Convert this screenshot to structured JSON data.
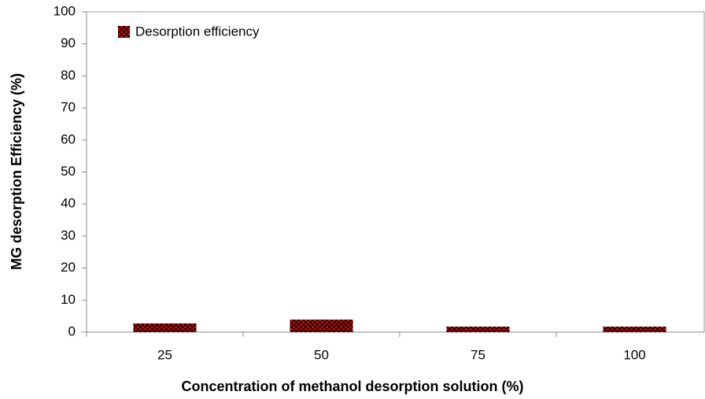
{
  "chart_data": {
    "type": "bar",
    "x_label": "Concentration of methanol desorption solution (%)",
    "y_label": "MG desorption Efficiency (%)",
    "categories": [
      "25",
      "50",
      "75",
      "100"
    ],
    "series": [
      {
        "name": "Desorption efficiency",
        "color": "#d00000",
        "values": [
          2.7,
          3.9,
          1.7,
          1.7
        ]
      }
    ],
    "ylim": [
      0,
      100
    ],
    "yticks": [
      0,
      10,
      20,
      30,
      40,
      50,
      60,
      70,
      80,
      90,
      100
    ],
    "grid": false,
    "legend": "upper left"
  }
}
